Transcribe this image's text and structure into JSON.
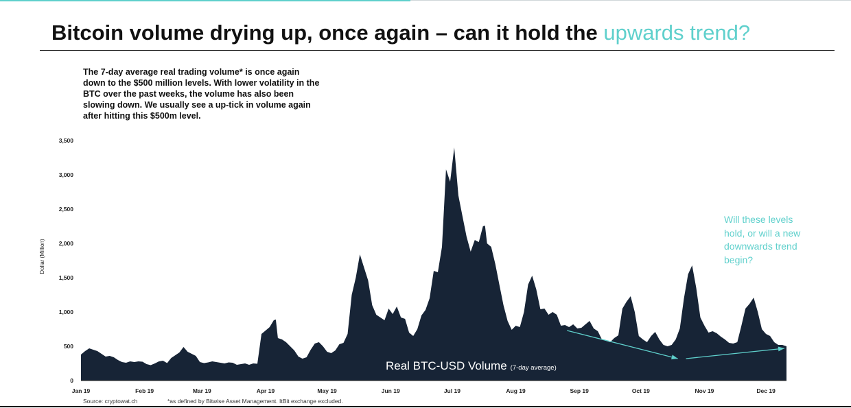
{
  "title": {
    "main": "Bitcoin volume drying up, once again – can it hold the ",
    "accent": "upwards trend?"
  },
  "lead_text": "The 7-day average real trading volume* is once again down to the $500 million levels. With lower volatility in the BTC over the past weeks, the volume has also been slowing down. We usually see a up-tick in volume again after hitting this $500m level.",
  "callout": "Will these levels hold, or will a new downwards trend begin?",
  "footer": {
    "source": "Source: cryptowat.ch",
    "note": "*as defined by Bitwise Asset Management. ItBit exchange excluded."
  },
  "colors": {
    "area": "#172436",
    "accent": "#5fd0cc",
    "text": "#111111"
  },
  "chart_data": {
    "type": "area",
    "ylabel": "Dollar (Million)",
    "xlabel": "",
    "ylim": [
      0,
      3500
    ],
    "yticks": [
      0,
      500,
      1000,
      1500,
      2000,
      2500,
      3000,
      3500
    ],
    "ytick_labels": [
      "0",
      "500",
      "1,000",
      "1,500",
      "2,000",
      "2,500",
      "3,000",
      "3,500"
    ],
    "xlim": [
      1,
      345
    ],
    "x_unit": "day of 2019",
    "xticks": [
      {
        "label": "Jan 19",
        "day": 1
      },
      {
        "label": "Feb 19",
        "day": 32
      },
      {
        "label": "Mar 19",
        "day": 60
      },
      {
        "label": "Apr 19",
        "day": 91
      },
      {
        "label": "May 19",
        "day": 121
      },
      {
        "label": "Jun 19",
        "day": 152
      },
      {
        "label": "Jul 19",
        "day": 182
      },
      {
        "label": "Aug 19",
        "day": 213
      },
      {
        "label": "Sep 19",
        "day": 244
      },
      {
        "label": "Oct 19",
        "day": 274
      },
      {
        "label": "Nov 19",
        "day": 305
      },
      {
        "label": "Dec 19",
        "day": 335
      }
    ],
    "series_label": "Real BTC-USD Volume",
    "series_sublabel": "(7-day average)",
    "series": [
      {
        "name": "Real BTC-USD Volume (7-day average)",
        "points": [
          [
            1,
            380
          ],
          [
            3,
            430
          ],
          [
            5,
            470
          ],
          [
            7,
            450
          ],
          [
            9,
            430
          ],
          [
            11,
            390
          ],
          [
            13,
            350
          ],
          [
            15,
            360
          ],
          [
            17,
            340
          ],
          [
            19,
            300
          ],
          [
            21,
            270
          ],
          [
            23,
            260
          ],
          [
            25,
            280
          ],
          [
            27,
            270
          ],
          [
            29,
            280
          ],
          [
            31,
            275
          ],
          [
            33,
            240
          ],
          [
            35,
            225
          ],
          [
            37,
            250
          ],
          [
            39,
            280
          ],
          [
            41,
            290
          ],
          [
            43,
            255
          ],
          [
            45,
            330
          ],
          [
            47,
            370
          ],
          [
            49,
            410
          ],
          [
            51,
            490
          ],
          [
            53,
            420
          ],
          [
            55,
            390
          ],
          [
            57,
            360
          ],
          [
            59,
            270
          ],
          [
            61,
            255
          ],
          [
            63,
            265
          ],
          [
            65,
            280
          ],
          [
            67,
            270
          ],
          [
            69,
            260
          ],
          [
            71,
            250
          ],
          [
            73,
            265
          ],
          [
            75,
            260
          ],
          [
            77,
            230
          ],
          [
            79,
            240
          ],
          [
            81,
            250
          ],
          [
            83,
            230
          ],
          [
            85,
            250
          ],
          [
            87,
            245
          ],
          [
            89,
            680
          ],
          [
            91,
            730
          ],
          [
            93,
            780
          ],
          [
            95,
            880
          ],
          [
            96,
            890
          ],
          [
            97,
            620
          ],
          [
            99,
            600
          ],
          [
            101,
            560
          ],
          [
            103,
            500
          ],
          [
            105,
            440
          ],
          [
            107,
            350
          ],
          [
            109,
            320
          ],
          [
            111,
            340
          ],
          [
            113,
            450
          ],
          [
            115,
            540
          ],
          [
            117,
            560
          ],
          [
            119,
            500
          ],
          [
            121,
            420
          ],
          [
            123,
            400
          ],
          [
            125,
            440
          ],
          [
            127,
            530
          ],
          [
            129,
            550
          ],
          [
            131,
            680
          ],
          [
            133,
            1250
          ],
          [
            135,
            1500
          ],
          [
            137,
            1840
          ],
          [
            139,
            1650
          ],
          [
            141,
            1460
          ],
          [
            143,
            1100
          ],
          [
            145,
            960
          ],
          [
            147,
            920
          ],
          [
            149,
            880
          ],
          [
            151,
            1050
          ],
          [
            153,
            970
          ],
          [
            155,
            1080
          ],
          [
            157,
            920
          ],
          [
            159,
            900
          ],
          [
            161,
            700
          ],
          [
            163,
            650
          ],
          [
            165,
            750
          ],
          [
            167,
            950
          ],
          [
            169,
            1030
          ],
          [
            171,
            1200
          ],
          [
            173,
            1600
          ],
          [
            175,
            1580
          ],
          [
            177,
            1950
          ],
          [
            179,
            3080
          ],
          [
            181,
            2900
          ],
          [
            183,
            3400
          ],
          [
            185,
            2700
          ],
          [
            187,
            2400
          ],
          [
            189,
            2100
          ],
          [
            191,
            1880
          ],
          [
            193,
            2050
          ],
          [
            195,
            2020
          ],
          [
            197,
            2250
          ],
          [
            198,
            2260
          ],
          [
            199,
            2000
          ],
          [
            201,
            1950
          ],
          [
            203,
            1700
          ],
          [
            205,
            1400
          ],
          [
            207,
            1100
          ],
          [
            209,
            870
          ],
          [
            211,
            740
          ],
          [
            213,
            800
          ],
          [
            215,
            780
          ],
          [
            217,
            1000
          ],
          [
            219,
            1400
          ],
          [
            221,
            1530
          ],
          [
            223,
            1330
          ],
          [
            225,
            1040
          ],
          [
            227,
            1050
          ],
          [
            229,
            960
          ],
          [
            231,
            1000
          ],
          [
            233,
            960
          ],
          [
            235,
            800
          ],
          [
            237,
            810
          ],
          [
            239,
            780
          ],
          [
            241,
            820
          ],
          [
            243,
            760
          ],
          [
            245,
            770
          ],
          [
            247,
            820
          ],
          [
            249,
            870
          ],
          [
            251,
            760
          ],
          [
            253,
            720
          ],
          [
            255,
            600
          ],
          [
            257,
            580
          ],
          [
            259,
            560
          ],
          [
            261,
            620
          ],
          [
            263,
            660
          ],
          [
            265,
            1050
          ],
          [
            267,
            1150
          ],
          [
            269,
            1230
          ],
          [
            271,
            1000
          ],
          [
            273,
            650
          ],
          [
            275,
            600
          ],
          [
            277,
            560
          ],
          [
            279,
            650
          ],
          [
            281,
            710
          ],
          [
            283,
            600
          ],
          [
            285,
            520
          ],
          [
            287,
            500
          ],
          [
            289,
            520
          ],
          [
            291,
            600
          ],
          [
            293,
            760
          ],
          [
            295,
            1200
          ],
          [
            297,
            1550
          ],
          [
            299,
            1680
          ],
          [
            301,
            1350
          ],
          [
            303,
            920
          ],
          [
            305,
            800
          ],
          [
            307,
            700
          ],
          [
            309,
            720
          ],
          [
            311,
            690
          ],
          [
            313,
            640
          ],
          [
            315,
            600
          ],
          [
            317,
            550
          ],
          [
            319,
            540
          ],
          [
            321,
            560
          ],
          [
            323,
            800
          ],
          [
            325,
            1050
          ],
          [
            327,
            1120
          ],
          [
            329,
            1210
          ],
          [
            331,
            1000
          ],
          [
            333,
            750
          ],
          [
            335,
            680
          ],
          [
            337,
            650
          ],
          [
            339,
            560
          ],
          [
            341,
            520
          ],
          [
            343,
            520
          ],
          [
            345,
            500
          ]
        ]
      }
    ],
    "annotations": [
      {
        "type": "arrow",
        "from": [
          238,
          730
        ],
        "to": [
          292,
          320
        ]
      },
      {
        "type": "arrow",
        "from": [
          296,
          320
        ],
        "to": [
          344,
          470
        ]
      }
    ]
  }
}
